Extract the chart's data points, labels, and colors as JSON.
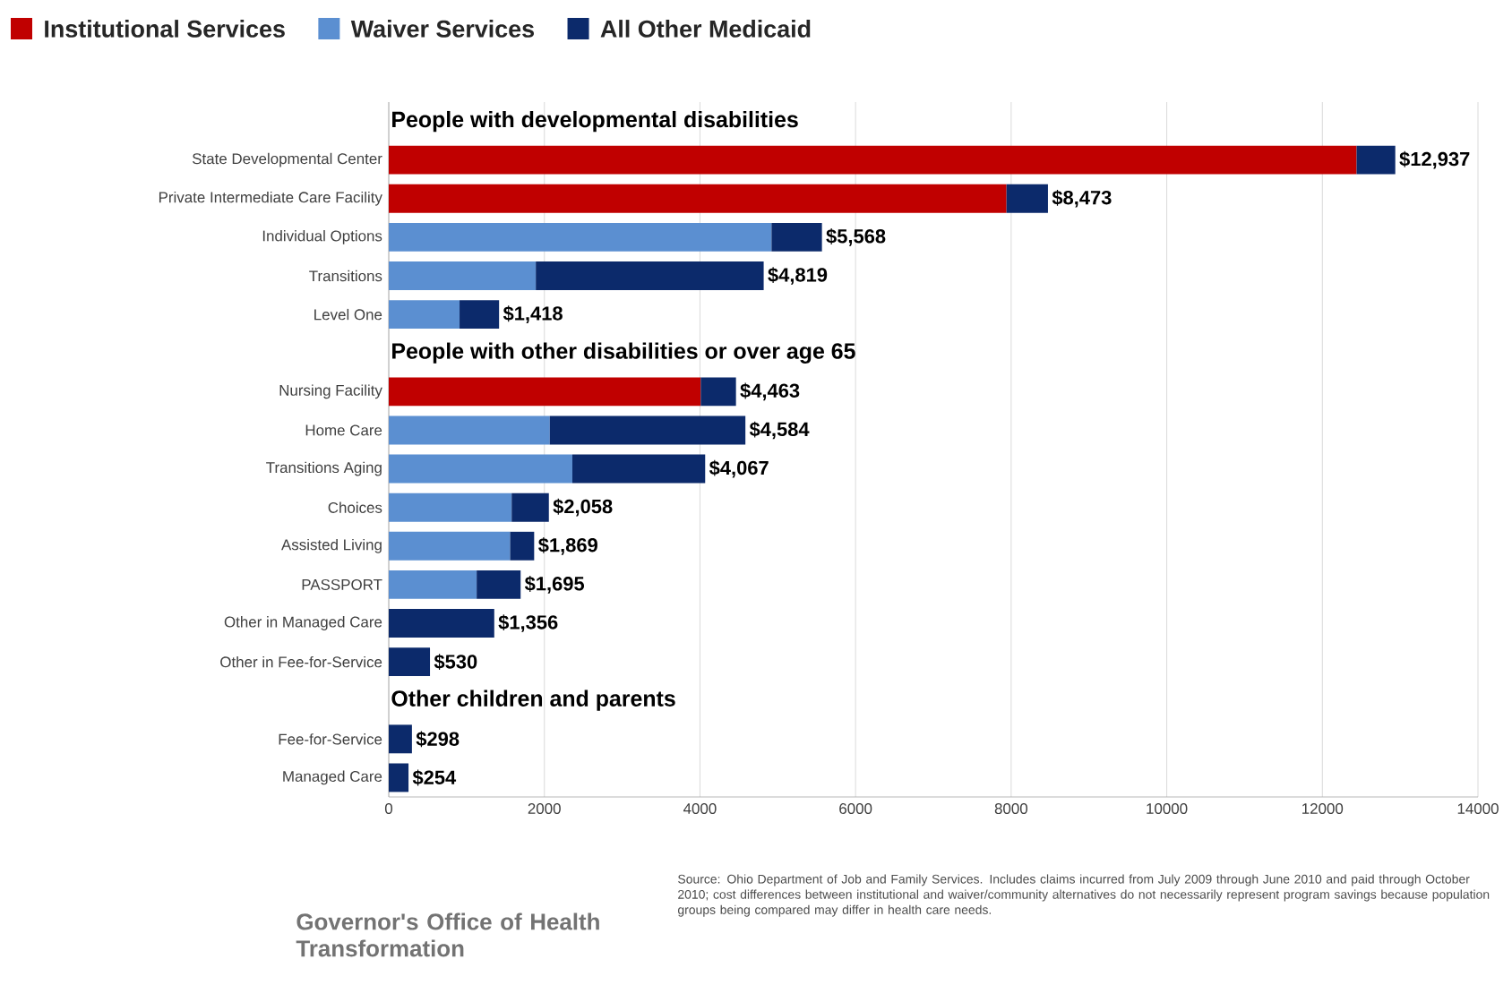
{
  "chart_data": {
    "type": "bar",
    "orientation": "horizontal",
    "stacked": true,
    "categories": [
      null,
      "State Developmental Center",
      "Private Intermediate Care Facility",
      "Individual Options",
      "Transitions",
      "Level One",
      null,
      "Nursing Facility",
      "Home Care",
      "Transitions Aging",
      "Choices",
      "Assisted Living",
      "PASSPORT",
      "Other in Managed Care",
      "Other in Fee-for-Service",
      null,
      "Fee-for-Service",
      "Managed Care"
    ],
    "series": [
      {
        "name": "Institutional Services",
        "color": "#c00000",
        "values": [
          null,
          12440,
          7940,
          null,
          null,
          null,
          null,
          4010,
          null,
          null,
          null,
          null,
          null,
          null,
          null,
          null,
          null,
          null
        ]
      },
      {
        "name": "Waiver Services",
        "color": "#5b8fd1",
        "values": [
          null,
          null,
          null,
          4920,
          1890,
          910,
          null,
          null,
          2070,
          2360,
          1580,
          1560,
          1130,
          null,
          null,
          null,
          null,
          null
        ]
      },
      {
        "name": "All Other Medicaid",
        "color": "#0c2a6b",
        "values": [
          null,
          497,
          533,
          648,
          2929,
          508,
          null,
          453,
          2514,
          1707,
          478,
          309,
          565,
          1356,
          530,
          null,
          298,
          254
        ]
      }
    ],
    "totals": [
      null,
      "$12,937",
      "$8,473",
      "$5,568",
      "$4,819",
      "$1,418",
      null,
      "$4,463",
      "$4,584",
      "$4,067",
      "$2,058",
      "$1,869",
      "$1,695",
      "$1,356",
      "$530",
      null,
      "$298",
      "$254"
    ],
    "xlim": [
      0,
      14000
    ],
    "xticks": [
      0,
      2000,
      4000,
      6000,
      8000,
      10000,
      12000,
      14000
    ],
    "grid": "x",
    "legend": "top",
    "annotations": [
      "People with developmental disabilities",
      "People with other disabilities or over age 65",
      "Other children and parents",
      "Governor's Office of Health Transformation",
      "Source: Ohio Department of Job and Family Services. Includes claims incurred from July 2009 through June 2010 and paid through October 2010; cost differences between institutional and waiver/community alternatives do not necessarily represent program savings because population groups being compared may differ in health care needs."
    ]
  }
}
